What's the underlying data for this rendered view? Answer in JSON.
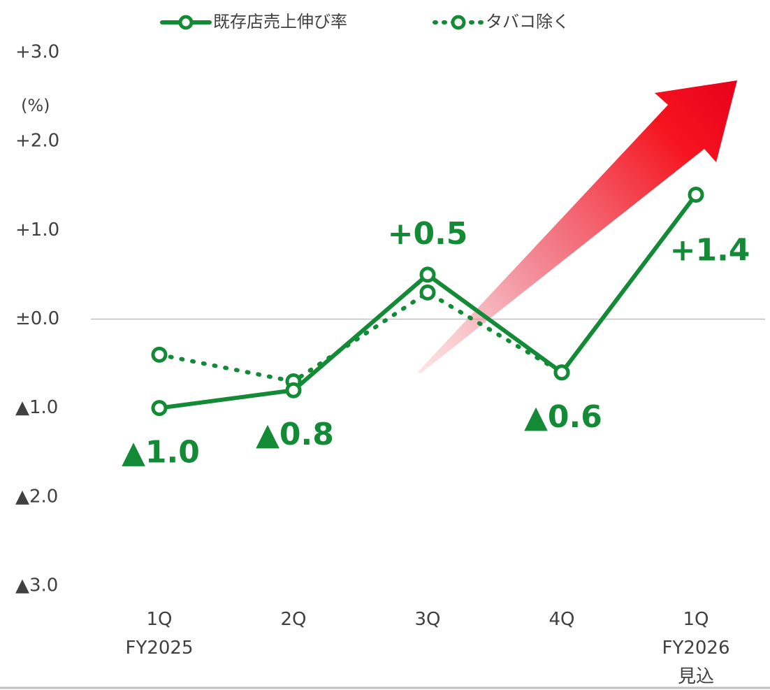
{
  "chart_data": {
    "type": "line",
    "unit_label": "(%)",
    "categories": [
      "1Q\nFY2025",
      "2Q",
      "3Q",
      "4Q",
      "1Q\nFY2026\n見込"
    ],
    "series": [
      {
        "name": "既存店売上伸び率",
        "color": "#138a36",
        "line_style": "solid",
        "values": [
          -1.0,
          -0.8,
          0.5,
          -0.6,
          1.4
        ],
        "value_labels": [
          "▲1.0",
          "▲0.8",
          "+0.5",
          "▲0.6",
          "+1.4"
        ]
      },
      {
        "name": "タバコ除く",
        "color": "#138a36",
        "line_style": "dotted",
        "values": [
          -0.4,
          -0.7,
          0.3,
          -0.6,
          null
        ]
      }
    ],
    "ylim": [
      -3,
      3
    ],
    "yticks": [
      {
        "value": 3,
        "label": "+3.0"
      },
      {
        "value": 2,
        "label": "+2.0"
      },
      {
        "value": 1,
        "label": "+1.0"
      },
      {
        "value": 0,
        "label": "±0.0"
      },
      {
        "value": -1,
        "label": "▲1.0"
      },
      {
        "value": -2,
        "label": "▲2.0"
      },
      {
        "value": -3,
        "label": "▲3.0"
      }
    ],
    "grid": false,
    "zero_line": true,
    "legend": "top"
  }
}
